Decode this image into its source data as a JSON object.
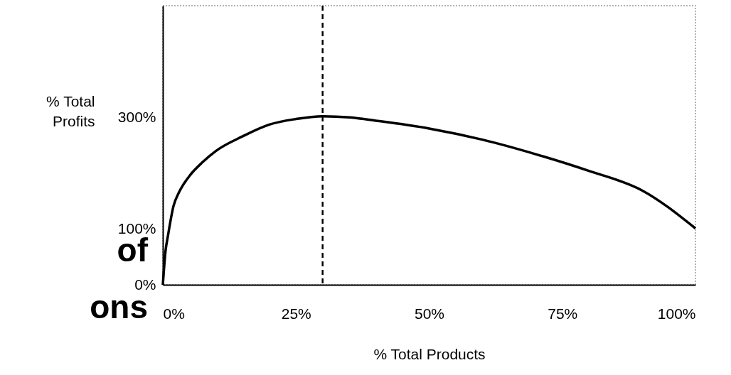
{
  "chart_data": {
    "type": "line",
    "xlabel": "% Total Products",
    "ylabel": "% Total Profits",
    "x": [
      0,
      0.5,
      1,
      2,
      3,
      5,
      7.5,
      10,
      15,
      20,
      25,
      30,
      35,
      40,
      50,
      60,
      70,
      80,
      90,
      100
    ],
    "series": [
      {
        "color": "#000000",
        "values": [
          0,
          60,
          90,
          141,
          165,
          195,
          220,
          240,
          266,
          287,
          297,
          302,
          300,
          294,
          280,
          260,
          234,
          204,
          169,
          101
        ]
      }
    ],
    "xlim": [
      0,
      100
    ],
    "ylim": [
      0,
      500
    ],
    "xticks": [
      {
        "value": 0,
        "label": "0%"
      },
      {
        "value": 25,
        "label": "25%"
      },
      {
        "value": 50,
        "label": "50%"
      },
      {
        "value": 75,
        "label": "75%"
      },
      {
        "value": 100,
        "label": "100%"
      }
    ],
    "yticks": [
      {
        "value": 0,
        "label": "0%"
      },
      {
        "value": 100,
        "label": "100%"
      },
      {
        "value": 300,
        "label": "300%"
      }
    ],
    "ref_lines": [
      {
        "axis": "x",
        "value": 30,
        "line_style": "dashed",
        "color": "#000000"
      }
    ],
    "annotations": [
      "of",
      "ons"
    ],
    "grid": false,
    "legend": false,
    "marker": "none",
    "line_style": "solid"
  }
}
